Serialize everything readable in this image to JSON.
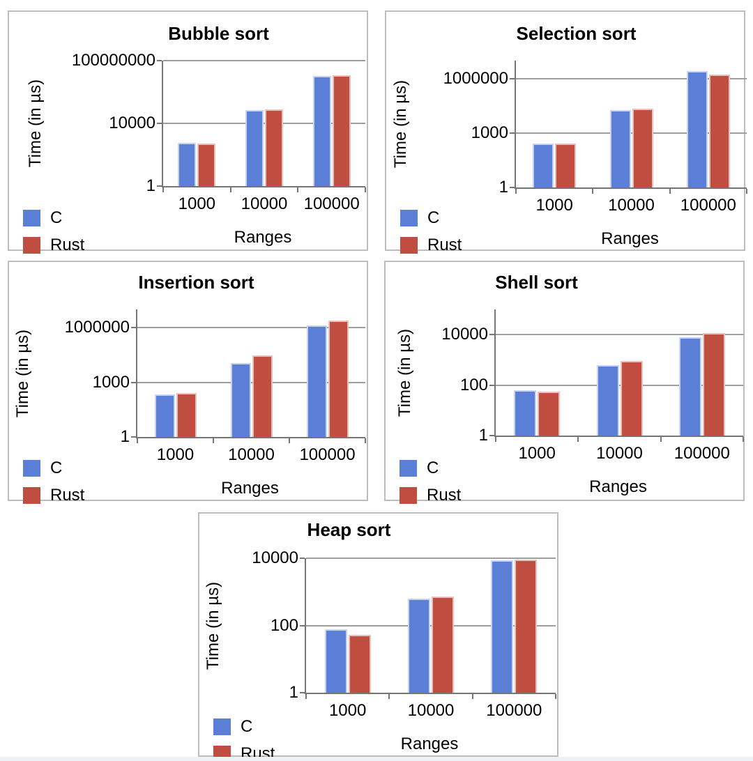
{
  "page": {
    "background": "#ffffff"
  },
  "legend": {
    "position": "bottom-left",
    "items": [
      {
        "label": "C",
        "color": "#5b7ed6"
      },
      {
        "label": "Rust",
        "color": "#bf4e41"
      }
    ]
  },
  "chart_data": [
    {
      "type": "bar",
      "title": "Bubble sort",
      "xlabel": "Ranges",
      "ylabel": "Time (in µs)",
      "log_scale": true,
      "grid": true,
      "ylim": [
        1,
        100000000
      ],
      "y_ticks": [
        "1",
        "10000",
        "100000000"
      ],
      "categories": [
        "1000",
        "10000",
        "100000"
      ],
      "series": [
        {
          "name": "C",
          "color": "#5b7ed6",
          "values": [
            580,
            70000,
            11000000
          ]
        },
        {
          "name": "Rust",
          "color": "#bf4e41",
          "values": [
            530,
            76000,
            11600000
          ]
        }
      ]
    },
    {
      "type": "bar",
      "title": "Selection sort",
      "xlabel": "Ranges",
      "ylabel": "Time (in µs)",
      "log_scale": true,
      "grid": true,
      "ylim": [
        1,
        10000000
      ],
      "y_ticks": [
        "1",
        "1000",
        "1000000"
      ],
      "categories": [
        "1000",
        "10000",
        "100000"
      ],
      "series": [
        {
          "name": "C",
          "color": "#5b7ed6",
          "values": [
            270,
            18000,
            2600000
          ]
        },
        {
          "name": "Rust",
          "color": "#bf4e41",
          "values": [
            255,
            22000,
            1700000
          ]
        }
      ]
    },
    {
      "type": "bar",
      "title": "Insertion sort",
      "xlabel": "Ranges",
      "ylabel": "Time (in µs)",
      "log_scale": true,
      "grid": true,
      "ylim": [
        1,
        10000000
      ],
      "y_ticks": [
        "1",
        "1000",
        "1000000"
      ],
      "categories": [
        "1000",
        "10000",
        "100000"
      ],
      "series": [
        {
          "name": "C",
          "color": "#5b7ed6",
          "values": [
            210,
            11000,
            1300000
          ]
        },
        {
          "name": "Rust",
          "color": "#bf4e41",
          "values": [
            260,
            29000,
            2400000
          ]
        }
      ]
    },
    {
      "type": "bar",
      "title": "Shell sort",
      "xlabel": "Ranges",
      "ylabel": "Time (in µs)",
      "log_scale": true,
      "grid": true,
      "ylim": [
        1,
        100000
      ],
      "y_ticks": [
        "1",
        "100",
        "10000"
      ],
      "categories": [
        "1000",
        "10000",
        "100000"
      ],
      "series": [
        {
          "name": "C",
          "color": "#5b7ed6",
          "values": [
            62,
            600,
            8000
          ]
        },
        {
          "name": "Rust",
          "color": "#bf4e41",
          "values": [
            55,
            900,
            11500
          ]
        }
      ]
    },
    {
      "type": "bar",
      "title": "Heap sort",
      "xlabel": "Ranges",
      "ylabel": "Time (in µs)",
      "log_scale": true,
      "grid": true,
      "ylim": [
        1,
        10000
      ],
      "y_ticks": [
        "1",
        "100",
        "10000"
      ],
      "categories": [
        "1000",
        "10000",
        "100000"
      ],
      "series": [
        {
          "name": "C",
          "color": "#5b7ed6",
          "values": [
            76,
            630,
            8500
          ]
        },
        {
          "name": "Rust",
          "color": "#bf4e41",
          "values": [
            52,
            740,
            9200
          ]
        }
      ]
    }
  ]
}
